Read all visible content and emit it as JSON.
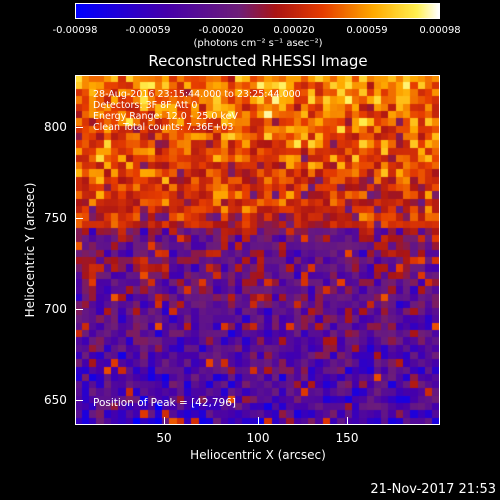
{
  "colorbar": {
    "ticks": [
      "-0.00098",
      "-0.00059",
      "-0.00020",
      "0.00020",
      "0.00059",
      "0.00098"
    ],
    "units": "(photons cm⁻² s⁻¹ asec⁻²)",
    "min": -0.00098,
    "max": 0.00098
  },
  "title": "Reconstructed RHESSI Image",
  "annotation": {
    "line1": "28-Aug-2016 23:15:44.000 to 23:25:44.000",
    "line2": "Detectors: 3F 8F  Att 0",
    "line3": "Energy Range: 12.0 - 25.0 keV",
    "line4": "Clean    Total counts: 7.36E+03",
    "peak": "Position of Peak = [42,796]"
  },
  "axes": {
    "xlabel": "Heliocentric X (arcsec)",
    "ylabel": "Heliocentric Y (arcsec)",
    "xticks": [
      "50",
      "100",
      "150"
    ],
    "yticks": [
      "800",
      "750",
      "700",
      "650"
    ]
  },
  "footer": {
    "timestamp": "21-Nov-2017 21:53"
  },
  "chart_data": {
    "type": "heatmap",
    "title": "Reconstructed RHESSI Image",
    "xlabel": "Heliocentric X (arcsec)",
    "ylabel": "Heliocentric Y (arcsec)",
    "xlim": [
      2,
      190
    ],
    "ylim": [
      635,
      820
    ],
    "zlim": [
      -0.00098,
      0.00098
    ],
    "colormap": "rainbow-heat (blue-purple-red-orange-yellow-white)",
    "peak_position": [
      42,
      796
    ]
  }
}
